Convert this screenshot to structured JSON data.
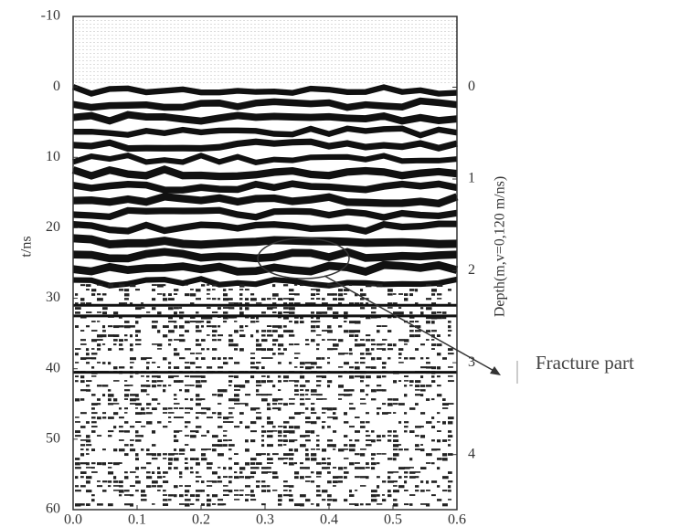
{
  "chart_data": {
    "type": "radargram",
    "ylabel": "t/ns",
    "y2label": "Depth(m,v=0,120 m/ns)",
    "annotation": "Fracture part",
    "xlim": [
      0,
      0.6
    ],
    "xticks": [
      {
        "value": 0,
        "label": "0.0"
      },
      0.1,
      0.2,
      0.3,
      0.4,
      0.5,
      0.6
    ],
    "ylim": [
      -10,
      60
    ],
    "yticks": [
      -10,
      0,
      10,
      20,
      30,
      40,
      50,
      60
    ],
    "y2lim": [
      -0.77,
      4.6
    ],
    "y2ticks": [
      0,
      1,
      2,
      3,
      4
    ]
  }
}
